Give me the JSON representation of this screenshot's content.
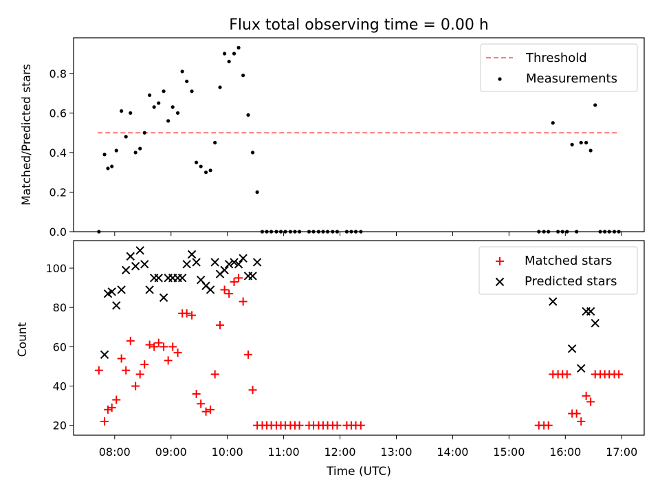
{
  "title": "Flux total observing time = 0.00 h",
  "x_axis": {
    "label": "Time (UTC)",
    "ticks": [
      {
        "label": "08:00",
        "t": 8
      },
      {
        "label": "09:00",
        "t": 9
      },
      {
        "label": "10:00",
        "t": 10
      },
      {
        "label": "11:00",
        "t": 11
      },
      {
        "label": "12:00",
        "t": 12
      },
      {
        "label": "13:00",
        "t": 13
      },
      {
        "label": "14:00",
        "t": 14
      },
      {
        "label": "15:00",
        "t": 15
      },
      {
        "label": "16:00",
        "t": 16
      },
      {
        "label": "17:00",
        "t": 17
      }
    ],
    "range": [
      7.27,
      17.4
    ]
  },
  "chart_data": [
    {
      "type": "scatter",
      "ylabel": "Matched/Predicted stars",
      "ylim": [
        0,
        0.98
      ],
      "yticks": [
        "0.0",
        "0.2",
        "0.4",
        "0.6",
        "0.8"
      ],
      "ytick_values": [
        0,
        0.2,
        0.4,
        0.6,
        0.8
      ],
      "legend_position": "top-right",
      "threshold": {
        "name": "Threshold",
        "value": 0.5,
        "x_from": 7.7,
        "x_to": 16.95,
        "color": "#ff7b7b"
      },
      "series": [
        {
          "name": "Measurements",
          "color": "#000000",
          "points": [
            [
              7.72,
              0.0
            ],
            [
              7.82,
              0.39
            ],
            [
              7.88,
              0.32
            ],
            [
              7.95,
              0.33
            ],
            [
              8.03,
              0.41
            ],
            [
              8.12,
              0.61
            ],
            [
              8.2,
              0.48
            ],
            [
              8.28,
              0.6
            ],
            [
              8.37,
              0.4
            ],
            [
              8.45,
              0.42
            ],
            [
              8.53,
              0.5
            ],
            [
              8.62,
              0.69
            ],
            [
              8.7,
              0.63
            ],
            [
              8.78,
              0.65
            ],
            [
              8.87,
              0.71
            ],
            [
              8.95,
              0.56
            ],
            [
              9.03,
              0.63
            ],
            [
              9.12,
              0.6
            ],
            [
              9.2,
              0.81
            ],
            [
              9.28,
              0.76
            ],
            [
              9.37,
              0.71
            ],
            [
              9.45,
              0.35
            ],
            [
              9.53,
              0.33
            ],
            [
              9.62,
              0.3
            ],
            [
              9.7,
              0.31
            ],
            [
              9.78,
              0.45
            ],
            [
              9.87,
              0.73
            ],
            [
              9.95,
              0.9
            ],
            [
              10.03,
              0.86
            ],
            [
              10.12,
              0.9
            ],
            [
              10.2,
              0.93
            ],
            [
              10.28,
              0.79
            ],
            [
              10.37,
              0.59
            ],
            [
              10.45,
              0.4
            ],
            [
              10.53,
              0.2
            ],
            [
              10.62,
              0.0
            ],
            [
              10.7,
              0.0
            ],
            [
              10.78,
              0.0
            ],
            [
              10.87,
              0.0
            ],
            [
              10.95,
              0.0
            ],
            [
              11.03,
              0.0
            ],
            [
              11.12,
              0.0
            ],
            [
              11.2,
              0.0
            ],
            [
              11.28,
              0.0
            ],
            [
              11.45,
              0.0
            ],
            [
              11.53,
              0.0
            ],
            [
              11.62,
              0.0
            ],
            [
              11.7,
              0.0
            ],
            [
              11.78,
              0.0
            ],
            [
              11.87,
              0.0
            ],
            [
              11.95,
              0.0
            ],
            [
              12.12,
              0.0
            ],
            [
              12.2,
              0.0
            ],
            [
              12.28,
              0.0
            ],
            [
              12.37,
              0.0
            ],
            [
              15.53,
              0.0
            ],
            [
              15.62,
              0.0
            ],
            [
              15.7,
              0.0
            ],
            [
              15.78,
              0.55
            ],
            [
              15.87,
              0.0
            ],
            [
              15.95,
              0.0
            ],
            [
              16.03,
              0.0
            ],
            [
              16.12,
              0.44
            ],
            [
              16.2,
              0.0
            ],
            [
              16.28,
              0.45
            ],
            [
              16.37,
              0.45
            ],
            [
              16.45,
              0.41
            ],
            [
              16.53,
              0.64
            ],
            [
              16.62,
              0.0
            ],
            [
              16.7,
              0.0
            ],
            [
              16.78,
              0.0
            ],
            [
              16.87,
              0.0
            ],
            [
              16.95,
              0.0
            ]
          ]
        }
      ]
    },
    {
      "type": "scatter",
      "ylabel": "Count",
      "ylim": [
        15,
        114
      ],
      "yticks": [
        "20",
        "40",
        "60",
        "80",
        "100"
      ],
      "ytick_values": [
        20,
        40,
        60,
        80,
        100
      ],
      "xlabel": "Time (UTC)",
      "legend_position": "top-right",
      "series": [
        {
          "name": "Matched stars",
          "color": "#ff0000",
          "marker": "plus",
          "points": [
            [
              7.72,
              48
            ],
            [
              7.82,
              22
            ],
            [
              7.88,
              28
            ],
            [
              7.95,
              29
            ],
            [
              8.03,
              33
            ],
            [
              8.12,
              54
            ],
            [
              8.2,
              48
            ],
            [
              8.28,
              63
            ],
            [
              8.37,
              40
            ],
            [
              8.45,
              46
            ],
            [
              8.53,
              51
            ],
            [
              8.62,
              61
            ],
            [
              8.7,
              60
            ],
            [
              8.78,
              62
            ],
            [
              8.87,
              60
            ],
            [
              8.95,
              53
            ],
            [
              9.03,
              60
            ],
            [
              9.12,
              57
            ],
            [
              9.2,
              77
            ],
            [
              9.28,
              77
            ],
            [
              9.37,
              76
            ],
            [
              9.45,
              36
            ],
            [
              9.53,
              31
            ],
            [
              9.62,
              27
            ],
            [
              9.7,
              28
            ],
            [
              9.78,
              46
            ],
            [
              9.87,
              71
            ],
            [
              9.95,
              89
            ],
            [
              10.03,
              87
            ],
            [
              10.12,
              93
            ],
            [
              10.2,
              95
            ],
            [
              10.28,
              83
            ],
            [
              10.37,
              56
            ],
            [
              10.45,
              38
            ],
            [
              10.53,
              20
            ],
            [
              10.62,
              20
            ],
            [
              10.7,
              20
            ],
            [
              10.78,
              20
            ],
            [
              10.87,
              20
            ],
            [
              10.95,
              20
            ],
            [
              11.03,
              20
            ],
            [
              11.12,
              20
            ],
            [
              11.2,
              20
            ],
            [
              11.28,
              20
            ],
            [
              11.45,
              20
            ],
            [
              11.53,
              20
            ],
            [
              11.62,
              20
            ],
            [
              11.7,
              20
            ],
            [
              11.78,
              20
            ],
            [
              11.87,
              20
            ],
            [
              11.95,
              20
            ],
            [
              12.12,
              20
            ],
            [
              12.2,
              20
            ],
            [
              12.28,
              20
            ],
            [
              12.37,
              20
            ],
            [
              15.53,
              20
            ],
            [
              15.62,
              20
            ],
            [
              15.7,
              20
            ],
            [
              15.78,
              46
            ],
            [
              15.87,
              46
            ],
            [
              15.95,
              46
            ],
            [
              16.03,
              46
            ],
            [
              16.12,
              26
            ],
            [
              16.2,
              26
            ],
            [
              16.28,
              22
            ],
            [
              16.37,
              35
            ],
            [
              16.45,
              32
            ],
            [
              16.53,
              46
            ],
            [
              16.62,
              46
            ],
            [
              16.7,
              46
            ],
            [
              16.78,
              46
            ],
            [
              16.87,
              46
            ],
            [
              16.95,
              46
            ]
          ]
        },
        {
          "name": "Predicted stars",
          "color": "#000000",
          "marker": "x",
          "points": [
            [
              7.82,
              56
            ],
            [
              7.88,
              87
            ],
            [
              7.95,
              88
            ],
            [
              8.03,
              81
            ],
            [
              8.12,
              89
            ],
            [
              8.2,
              99
            ],
            [
              8.28,
              106
            ],
            [
              8.37,
              101
            ],
            [
              8.45,
              109
            ],
            [
              8.53,
              102
            ],
            [
              8.62,
              89
            ],
            [
              8.7,
              95
            ],
            [
              8.78,
              95
            ],
            [
              8.87,
              85
            ],
            [
              8.95,
              95
            ],
            [
              9.03,
              95
            ],
            [
              9.12,
              95
            ],
            [
              9.2,
              95
            ],
            [
              9.28,
              102
            ],
            [
              9.37,
              107
            ],
            [
              9.45,
              103
            ],
            [
              9.53,
              94
            ],
            [
              9.62,
              91
            ],
            [
              9.7,
              89
            ],
            [
              9.78,
              103
            ],
            [
              9.87,
              97
            ],
            [
              9.95,
              99
            ],
            [
              10.03,
              102
            ],
            [
              10.12,
              103
            ],
            [
              10.2,
              102
            ],
            [
              10.28,
              105
            ],
            [
              10.37,
              96
            ],
            [
              10.45,
              96
            ],
            [
              10.53,
              103
            ],
            [
              15.78,
              83
            ],
            [
              16.12,
              59
            ],
            [
              16.28,
              49
            ],
            [
              16.37,
              78
            ],
            [
              16.45,
              78
            ],
            [
              16.53,
              72
            ]
          ]
        }
      ]
    }
  ]
}
